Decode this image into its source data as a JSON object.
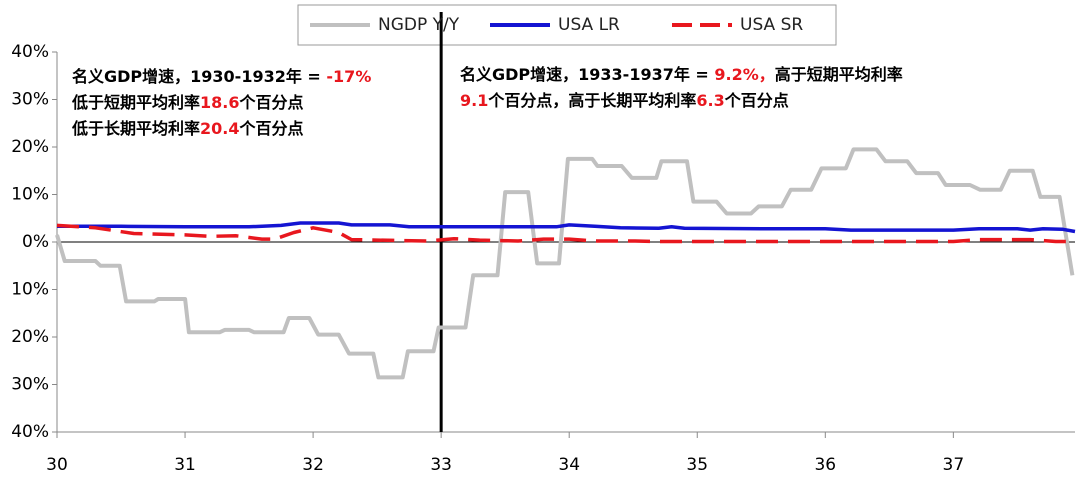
{
  "chart_data": {
    "type": "line",
    "xlim": [
      30,
      37.95
    ],
    "xticks": [
      30,
      31,
      32,
      33,
      34,
      35,
      36,
      37
    ],
    "ylim": [
      -40,
      40
    ],
    "yticks": [
      {
        "value": 40,
        "label": "40%"
      },
      {
        "value": 30,
        "label": "30%"
      },
      {
        "value": 20,
        "label": "20%"
      },
      {
        "value": 10,
        "label": "10%"
      },
      {
        "value": 0,
        "label": "0%"
      },
      {
        "value": -10,
        "label": "10%"
      },
      {
        "value": -20,
        "label": "20%"
      },
      {
        "value": -30,
        "label": "30%"
      },
      {
        "value": -40,
        "label": "40%"
      }
    ],
    "vline": 33,
    "legend": "top",
    "series": [
      {
        "name": "NGDP Y/Y",
        "color": "#c0c0c0",
        "style": "solid",
        "x": [
          30.0,
          30.06,
          30.3,
          30.34,
          30.49,
          30.54,
          30.76,
          30.79,
          31.0,
          31.03,
          31.27,
          31.31,
          31.5,
          31.54,
          31.77,
          31.81,
          31.97,
          32.04,
          32.2,
          32.28,
          32.47,
          32.51,
          32.7,
          32.74,
          32.94,
          32.98,
          33.19,
          33.25,
          33.44,
          33.5,
          33.68,
          33.75,
          33.92,
          33.99,
          34.18,
          34.22,
          34.41,
          34.49,
          34.68,
          34.72,
          34.92,
          34.97,
          35.15,
          35.23,
          35.42,
          35.48,
          35.66,
          35.73,
          35.89,
          35.97,
          36.16,
          36.22,
          36.4,
          36.47,
          36.64,
          36.71,
          36.88,
          36.94,
          37.13,
          37.21,
          37.37,
          37.44,
          37.62,
          37.68,
          37.83,
          37.93
        ],
        "values": [
          1.5,
          -4,
          -4,
          -5,
          -5,
          -12.5,
          -12.5,
          -12,
          -12,
          -19,
          -19,
          -18.5,
          -18.5,
          -19,
          -19,
          -16,
          -16,
          -19.5,
          -19.5,
          -23.5,
          -23.5,
          -28.5,
          -28.5,
          -23,
          -23,
          -18,
          -18,
          -7,
          -7,
          10.5,
          10.5,
          -4.5,
          -4.5,
          17.5,
          17.5,
          16,
          16,
          13.5,
          13.5,
          17,
          17,
          8.5,
          8.5,
          6,
          6,
          7.5,
          7.5,
          11,
          11,
          15.5,
          15.5,
          19.5,
          19.5,
          17,
          17,
          14.5,
          14.5,
          12,
          12,
          11,
          11,
          15,
          15,
          9.5,
          9.5,
          -7
        ]
      },
      {
        "name": "USA LR",
        "color": "#1414d2",
        "style": "solid",
        "x": [
          30,
          30.5,
          31,
          31.5,
          31.75,
          31.9,
          32.2,
          32.3,
          32.6,
          32.75,
          33,
          33.5,
          33.9,
          34.0,
          34.2,
          34.4,
          34.7,
          34.8,
          34.9,
          35.5,
          36,
          36.2,
          37,
          37.2,
          37.5,
          37.6,
          37.7,
          37.85,
          37.95
        ],
        "values": [
          3.3,
          3.3,
          3.2,
          3.2,
          3.5,
          4,
          4,
          3.6,
          3.6,
          3.2,
          3.2,
          3.2,
          3.2,
          3.6,
          3.3,
          3,
          2.9,
          3.2,
          2.9,
          2.8,
          2.8,
          2.5,
          2.5,
          2.8,
          2.8,
          2.5,
          2.8,
          2.7,
          2.2
        ]
      },
      {
        "name": "USA SR",
        "color": "#e8171e",
        "style": "dashed",
        "x": [
          30,
          30.3,
          30.6,
          31,
          31.2,
          31.4,
          31.6,
          31.7,
          31.85,
          32,
          32.2,
          32.3,
          32.7,
          32.9,
          33.1,
          33.3,
          33.6,
          33.8,
          34,
          34.2,
          34.5,
          34.7,
          36,
          37,
          37.2,
          37.6,
          37.8,
          37.95
        ],
        "values": [
          3.5,
          3,
          1.8,
          1.5,
          1.2,
          1.3,
          0.6,
          0.6,
          2,
          3,
          2,
          0.5,
          0.3,
          0.2,
          0.7,
          0.4,
          0.2,
          0.6,
          0.6,
          0.2,
          0.2,
          0.1,
          0.1,
          0.1,
          0.5,
          0.5,
          0.1,
          0.1
        ]
      }
    ],
    "annotations": [
      {
        "lines": [
          [
            {
              "text": "名义GDP增速，1930-1932年 = "
            },
            {
              "text": "-17%",
              "color": "#e8171e"
            }
          ],
          [
            {
              "text": "低于短期平均利率"
            },
            {
              "text": "18.6",
              "color": "#e8171e"
            },
            {
              "text": "个百分点"
            }
          ],
          [
            {
              "text": "低于长期平均利率"
            },
            {
              "text": "20.4",
              "color": "#e8171e"
            },
            {
              "text": "个百分点"
            }
          ]
        ]
      },
      {
        "lines": [
          [
            {
              "text": "名义GDP增速，1933-1937年 = "
            },
            {
              "text": "9.2%，",
              "color": "#e8171e"
            },
            {
              "text": "高于短期平均利率"
            }
          ],
          [
            {
              "text": "9.1",
              "color": "#e8171e"
            },
            {
              "text": "个百分点，高于长期平均利率"
            },
            {
              "text": "6.3",
              "color": "#e8171e"
            },
            {
              "text": "个百分点"
            }
          ]
        ]
      }
    ]
  }
}
